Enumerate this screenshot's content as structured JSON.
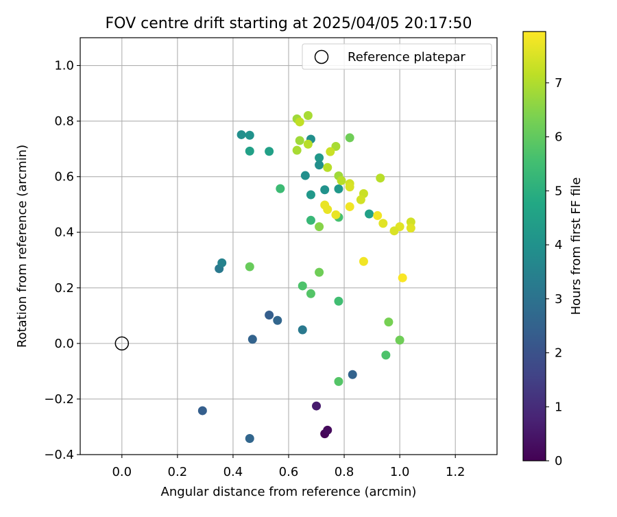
{
  "chart_data": {
    "type": "scatter",
    "title": "FOV centre drift starting at 2025/04/05 20:17:50",
    "xlabel": "Angular distance from reference (arcmin)",
    "ylabel": "Rotation from reference (arcmin)",
    "xlim": [
      -0.15,
      1.35
    ],
    "ylim": [
      -0.4,
      1.1
    ],
    "xticks": [
      0.0,
      0.2,
      0.4,
      0.6,
      0.8,
      1.0,
      1.2
    ],
    "xtick_labels": [
      "0.0",
      "0.2",
      "0.4",
      "0.6",
      "0.8",
      "1.0",
      "1.2"
    ],
    "yticks": [
      -0.4,
      -0.2,
      0.0,
      0.2,
      0.4,
      0.6,
      0.8,
      1.0
    ],
    "ytick_labels": [
      "−0.4",
      "−0.2",
      "0.0",
      "0.2",
      "0.4",
      "0.6",
      "0.8",
      "1.0"
    ],
    "grid": true,
    "legend": {
      "placement": "top-right",
      "label": "Reference platepar"
    },
    "reference_point": {
      "x": 0.0,
      "y": 0.0
    },
    "colorbar": {
      "label": "Hours from first FF file",
      "min": 0,
      "max": 7.95,
      "colormap": "viridis",
      "ticks": [
        0,
        1,
        2,
        3,
        4,
        5,
        6,
        7
      ],
      "tick_labels": [
        "0",
        "1",
        "2",
        "3",
        "4",
        "5",
        "6",
        "7"
      ]
    },
    "points": [
      {
        "x": 0.7,
        "y": -0.225,
        "hours": 0.6
      },
      {
        "x": 0.73,
        "y": -0.325,
        "hours": 0.1
      },
      {
        "x": 0.74,
        "y": -0.312,
        "hours": 0.2
      },
      {
        "x": 0.29,
        "y": -0.242,
        "hours": 2.4
      },
      {
        "x": 0.46,
        "y": -0.342,
        "hours": 2.6
      },
      {
        "x": 0.47,
        "y": 0.015,
        "hours": 2.5
      },
      {
        "x": 0.53,
        "y": 0.102,
        "hours": 2.4
      },
      {
        "x": 0.56,
        "y": 0.083,
        "hours": 2.6
      },
      {
        "x": 0.83,
        "y": -0.112,
        "hours": 2.5
      },
      {
        "x": 0.65,
        "y": 0.049,
        "hours": 3.2
      },
      {
        "x": 0.35,
        "y": 0.269,
        "hours": 3.2
      },
      {
        "x": 0.36,
        "y": 0.29,
        "hours": 3.5
      },
      {
        "x": 0.43,
        "y": 0.751,
        "hours": 3.9
      },
      {
        "x": 0.46,
        "y": 0.749,
        "hours": 4.0
      },
      {
        "x": 0.46,
        "y": 0.692,
        "hours": 4.5
      },
      {
        "x": 0.53,
        "y": 0.691,
        "hours": 4.5
      },
      {
        "x": 0.68,
        "y": 0.735,
        "hours": 3.9
      },
      {
        "x": 0.71,
        "y": 0.668,
        "hours": 4.2
      },
      {
        "x": 0.71,
        "y": 0.642,
        "hours": 3.9
      },
      {
        "x": 0.66,
        "y": 0.604,
        "hours": 3.9
      },
      {
        "x": 0.68,
        "y": 0.535,
        "hours": 4.2
      },
      {
        "x": 0.73,
        "y": 0.553,
        "hours": 4.0
      },
      {
        "x": 0.78,
        "y": 0.556,
        "hours": 4.2
      },
      {
        "x": 0.57,
        "y": 0.557,
        "hours": 5.4
      },
      {
        "x": 0.68,
        "y": 0.443,
        "hours": 5.3
      },
      {
        "x": 0.78,
        "y": 0.454,
        "hours": 5.6
      },
      {
        "x": 0.89,
        "y": 0.466,
        "hours": 4.5
      },
      {
        "x": 0.65,
        "y": 0.207,
        "hours": 5.7
      },
      {
        "x": 0.68,
        "y": 0.179,
        "hours": 5.8
      },
      {
        "x": 0.78,
        "y": 0.152,
        "hours": 5.5
      },
      {
        "x": 0.78,
        "y": -0.137,
        "hours": 5.8
      },
      {
        "x": 0.95,
        "y": -0.042,
        "hours": 5.7
      },
      {
        "x": 1.0,
        "y": 0.012,
        "hours": 6.2
      },
      {
        "x": 0.96,
        "y": 0.077,
        "hours": 6.3
      },
      {
        "x": 0.71,
        "y": 0.256,
        "hours": 6.2
      },
      {
        "x": 0.46,
        "y": 0.276,
        "hours": 6.1
      },
      {
        "x": 0.71,
        "y": 0.42,
        "hours": 6.5
      },
      {
        "x": 0.82,
        "y": 0.74,
        "hours": 6.2
      },
      {
        "x": 0.63,
        "y": 0.808,
        "hours": 6.8
      },
      {
        "x": 0.67,
        "y": 0.82,
        "hours": 6.9
      },
      {
        "x": 0.64,
        "y": 0.797,
        "hours": 7.2
      },
      {
        "x": 0.64,
        "y": 0.73,
        "hours": 6.8
      },
      {
        "x": 0.63,
        "y": 0.695,
        "hours": 6.9
      },
      {
        "x": 0.67,
        "y": 0.717,
        "hours": 7.1
      },
      {
        "x": 0.77,
        "y": 0.709,
        "hours": 6.9
      },
      {
        "x": 0.75,
        "y": 0.69,
        "hours": 7.3
      },
      {
        "x": 0.74,
        "y": 0.633,
        "hours": 7.1
      },
      {
        "x": 0.78,
        "y": 0.603,
        "hours": 6.8
      },
      {
        "x": 0.79,
        "y": 0.586,
        "hours": 7.1
      },
      {
        "x": 0.82,
        "y": 0.575,
        "hours": 7.4
      },
      {
        "x": 0.82,
        "y": 0.563,
        "hours": 7.5
      },
      {
        "x": 0.87,
        "y": 0.539,
        "hours": 7.3
      },
      {
        "x": 0.93,
        "y": 0.595,
        "hours": 7.1
      },
      {
        "x": 0.86,
        "y": 0.517,
        "hours": 7.4
      },
      {
        "x": 0.82,
        "y": 0.492,
        "hours": 7.8
      },
      {
        "x": 0.73,
        "y": 0.498,
        "hours": 7.7
      },
      {
        "x": 0.74,
        "y": 0.482,
        "hours": 7.7
      },
      {
        "x": 0.77,
        "y": 0.463,
        "hours": 7.7
      },
      {
        "x": 0.92,
        "y": 0.46,
        "hours": 7.8
      },
      {
        "x": 0.94,
        "y": 0.432,
        "hours": 7.6
      },
      {
        "x": 1.04,
        "y": 0.437,
        "hours": 7.4
      },
      {
        "x": 1.04,
        "y": 0.415,
        "hours": 7.6
      },
      {
        "x": 1.0,
        "y": 0.42,
        "hours": 7.6
      },
      {
        "x": 0.98,
        "y": 0.405,
        "hours": 7.5
      },
      {
        "x": 0.87,
        "y": 0.295,
        "hours": 7.8
      },
      {
        "x": 1.01,
        "y": 0.236,
        "hours": 7.9
      }
    ]
  }
}
